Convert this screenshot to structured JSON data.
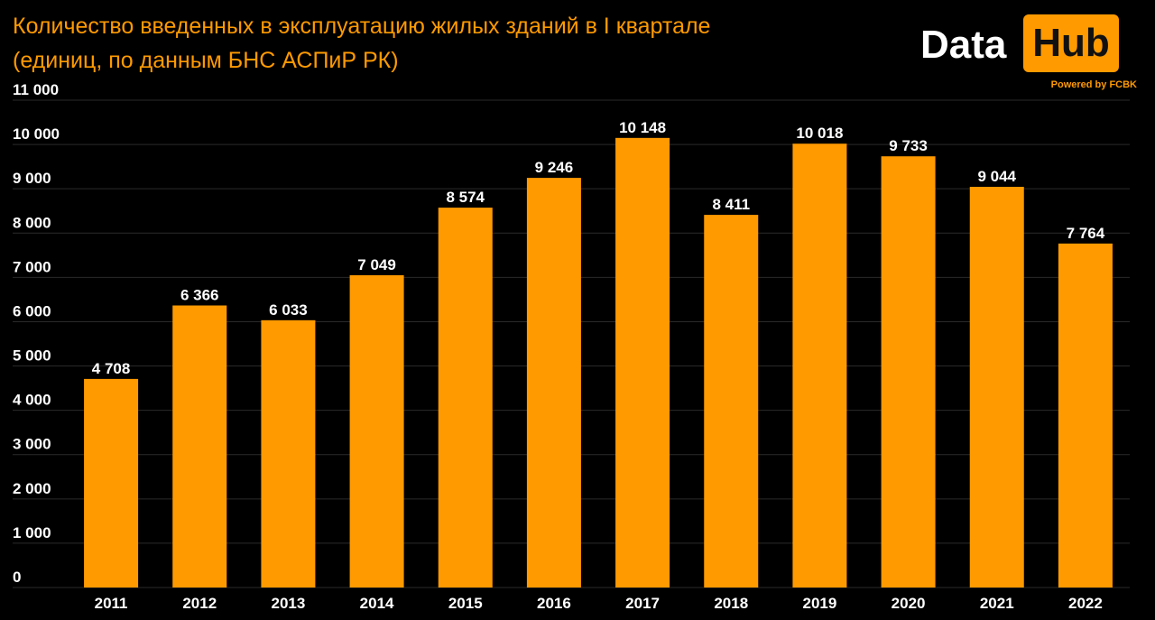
{
  "title_lines": [
    "Количество введенных в эксплуатацию жилых зданий в I квартале",
    "(единиц, по данным БНС АСПиР РК)"
  ],
  "logo": {
    "word1": "Data",
    "word2": "Hub",
    "powered": "Powered by FCBK"
  },
  "colors": {
    "background": "#000000",
    "bar": "#ff9a00",
    "title": "#ff9a00",
    "gridline": "#2a2a2a",
    "labels": "#ffffff"
  },
  "chart_data": {
    "type": "bar",
    "title": "Количество введенных в эксплуатацию жилых зданий в I квартале (единиц, по данным БНС АСПиР РК)",
    "categories": [
      "2011",
      "2012",
      "2013",
      "2014",
      "2015",
      "2016",
      "2017",
      "2018",
      "2019",
      "2020",
      "2021",
      "2022"
    ],
    "values": [
      4708,
      6366,
      6033,
      7049,
      8574,
      9246,
      10148,
      8411,
      10018,
      9733,
      9044,
      7764
    ],
    "value_labels": [
      "4 708",
      "6 366",
      "6 033",
      "7 049",
      "8 574",
      "9 246",
      "10 148",
      "8 411",
      "10 018",
      "9 733",
      "9 044",
      "7 764"
    ],
    "ylim": [
      0,
      11000
    ],
    "yticks": [
      0,
      1000,
      2000,
      3000,
      4000,
      5000,
      6000,
      7000,
      8000,
      9000,
      10000,
      11000
    ],
    "ytick_labels": [
      "0",
      "1 000",
      "2 000",
      "3 000",
      "4 000",
      "5 000",
      "6 000",
      "7 000",
      "8 000",
      "9 000",
      "10 000",
      "11 000"
    ],
    "grid": true,
    "legend": "none"
  }
}
